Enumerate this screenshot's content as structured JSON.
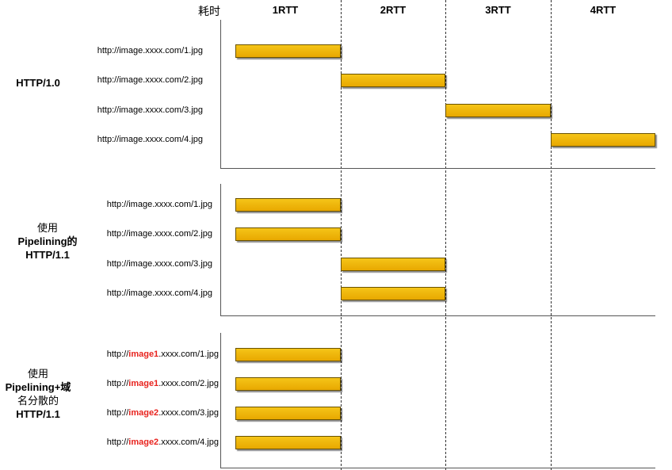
{
  "time_label": "耗时",
  "columns": [
    "1RTT",
    "2RTT",
    "3RTT",
    "4RTT"
  ],
  "colors": {
    "bar": "#f0b800",
    "bar_border": "#6a5200",
    "highlight": "#e8231e"
  },
  "sections": [
    {
      "label_lines": [
        "HTTP/1.0"
      ],
      "rows": [
        {
          "url": [
            "http://image.xxxx.com/1.jpg"
          ],
          "start_rtt": 0,
          "end_rtt": 1
        },
        {
          "url": [
            "http://image.xxxx.com/2.jpg"
          ],
          "start_rtt": 1,
          "end_rtt": 2
        },
        {
          "url": [
            "http://image.xxxx.com/3.jpg"
          ],
          "start_rtt": 2,
          "end_rtt": 3
        },
        {
          "url": [
            "http://image.xxxx.com/4.jpg"
          ],
          "start_rtt": 3,
          "end_rtt": 4
        }
      ]
    },
    {
      "label_lines": [
        "使用",
        "Pipelining的",
        "HTTP/1.1"
      ],
      "rows": [
        {
          "url": [
            "http://image.xxxx.com/1.jpg"
          ],
          "start_rtt": 0,
          "end_rtt": 1
        },
        {
          "url": [
            "http://image.xxxx.com/2.jpg"
          ],
          "start_rtt": 0,
          "end_rtt": 1
        },
        {
          "url": [
            "http://image.xxxx.com/3.jpg"
          ],
          "start_rtt": 1,
          "end_rtt": 2
        },
        {
          "url": [
            "http://image.xxxx.com/4.jpg"
          ],
          "start_rtt": 1,
          "end_rtt": 2
        }
      ]
    },
    {
      "label_lines": [
        "使用",
        "Pipelining+域",
        "名分散的",
        "HTTP/1.1"
      ],
      "rows": [
        {
          "url": [
            "http://",
            "image1",
            ".xxxx.com/1.jpg"
          ],
          "start_rtt": 0,
          "end_rtt": 1
        },
        {
          "url": [
            "http://",
            "image1",
            ".xxxx.com/2.jpg"
          ],
          "start_rtt": 0,
          "end_rtt": 1
        },
        {
          "url": [
            "http://",
            "image2",
            ".xxxx.com/3.jpg"
          ],
          "start_rtt": 0,
          "end_rtt": 1
        },
        {
          "url": [
            "http://",
            "image2",
            ".xxxx.com/4.jpg"
          ],
          "start_rtt": 0,
          "end_rtt": 1
        }
      ]
    }
  ]
}
